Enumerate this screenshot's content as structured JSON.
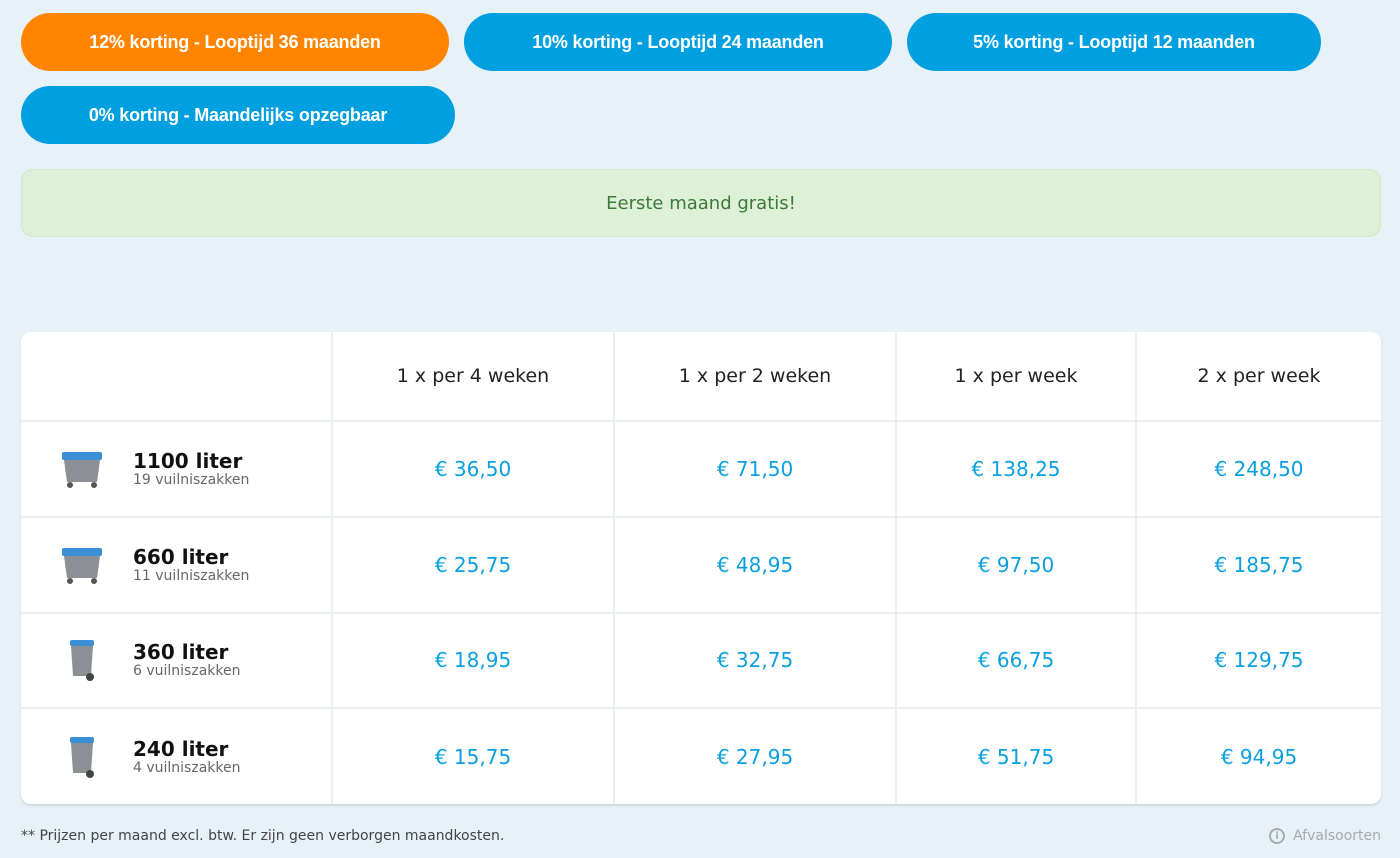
{
  "plans": [
    {
      "label": "12% korting - Looptijd 36 maanden",
      "active": true
    },
    {
      "label": "10% korting - Looptijd 24 maanden",
      "active": false
    },
    {
      "label": "5% korting - Looptijd 12 maanden",
      "active": false
    },
    {
      "label": "0% korting - Maandelijks opzegbaar",
      "active": false
    }
  ],
  "colors": {
    "active": "#ff8500",
    "inactive": "#009fe0",
    "price": "#0aa0e0"
  },
  "banner": "Eerste maand gratis!",
  "table": {
    "headers": [
      "",
      "1 x per 4 weken",
      "1 x per 2 weken",
      "1 x per week",
      "2 x per week"
    ],
    "rows": [
      {
        "name": "1100 liter",
        "sub": "19 vuilniszakken",
        "icon": "large-container-icon",
        "prices": [
          "€ 36,50",
          "€ 71,50",
          "€ 138,25",
          "€ 248,50"
        ]
      },
      {
        "name": "660 liter",
        "sub": "11 vuilniszakken",
        "icon": "large-container-icon",
        "prices": [
          "€ 25,75",
          "€ 48,95",
          "€ 97,50",
          "€ 185,75"
        ]
      },
      {
        "name": "360 liter",
        "sub": "6 vuilniszakken",
        "icon": "wheelie-bin-icon",
        "prices": [
          "€ 18,95",
          "€ 32,75",
          "€ 66,75",
          "€ 129,75"
        ]
      },
      {
        "name": "240 liter",
        "sub": "4 vuilniszakken",
        "icon": "wheelie-bin-icon",
        "prices": [
          "€ 15,75",
          "€ 27,95",
          "€ 51,75",
          "€ 94,95"
        ]
      }
    ]
  },
  "footer": {
    "note": "** Prijzen per maand excl. btw. Er zijn geen verborgen maandkosten.",
    "link": "Afvalsoorten"
  }
}
